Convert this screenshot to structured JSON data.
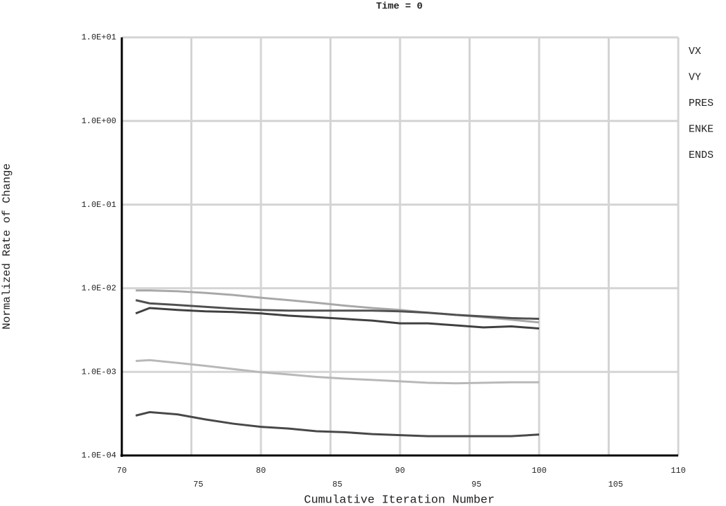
{
  "chart_data": {
    "type": "line",
    "title": "Time = 0",
    "x_label": "Cumulative Iteration Number",
    "y_label": "Normalized Rate of Change",
    "log_y": true,
    "grid": true,
    "legend": "right",
    "x": [
      71,
      72,
      74,
      76,
      78,
      80,
      82,
      84,
      86,
      88,
      90,
      92,
      94,
      96,
      98,
      100
    ],
    "xlim": [
      70,
      110
    ],
    "xticks": [
      70,
      75,
      80,
      85,
      90,
      95,
      100,
      105,
      110
    ],
    "ylim": [
      0.0001,
      10
    ],
    "yticks": [
      {
        "value": 0.0001,
        "label": "1.0E-04"
      },
      {
        "value": 0.001,
        "label": "1.0E-03"
      },
      {
        "value": 0.01,
        "label": "1.0E-02"
      },
      {
        "value": 0.1,
        "label": "1.0E-01"
      },
      {
        "value": 1,
        "label": "1.0E+00"
      },
      {
        "value": 10,
        "label": "1.0E+01"
      }
    ],
    "series": [
      {
        "name": "VX",
        "color": "#a8a8a8",
        "values": [
          0.0094,
          0.0094,
          0.0092,
          0.0088,
          0.0083,
          0.0077,
          0.0072,
          0.0067,
          0.0062,
          0.0058,
          0.0055,
          0.0051,
          0.0048,
          0.0045,
          0.0042,
          0.0039
        ]
      },
      {
        "name": "VY",
        "color": "#505050",
        "values": [
          0.0072,
          0.0066,
          0.0063,
          0.006,
          0.0057,
          0.0055,
          0.0054,
          0.0054,
          0.0054,
          0.0054,
          0.0053,
          0.0051,
          0.0048,
          0.0046,
          0.0044,
          0.0043
        ]
      },
      {
        "name": "PRES",
        "color": "#404040",
        "values": [
          0.005,
          0.0058,
          0.0055,
          0.0053,
          0.0052,
          0.005,
          0.0047,
          0.0045,
          0.0043,
          0.0041,
          0.0038,
          0.0038,
          0.0036,
          0.0034,
          0.0035,
          0.0033
        ]
      },
      {
        "name": "ENKE",
        "color": "#b8b8b8",
        "values": [
          0.00135,
          0.00138,
          0.00128,
          0.00118,
          0.00108,
          0.00099,
          0.00093,
          0.00087,
          0.00083,
          0.0008,
          0.00077,
          0.00074,
          0.00073,
          0.00074,
          0.00075,
          0.00075
        ]
      },
      {
        "name": "ENDS",
        "color": "#484848",
        "values": [
          0.0003,
          0.00033,
          0.00031,
          0.00027,
          0.00024,
          0.00022,
          0.00021,
          0.000195,
          0.00019,
          0.00018,
          0.000175,
          0.00017,
          0.00017,
          0.00017,
          0.00017,
          0.000178
        ]
      }
    ]
  }
}
